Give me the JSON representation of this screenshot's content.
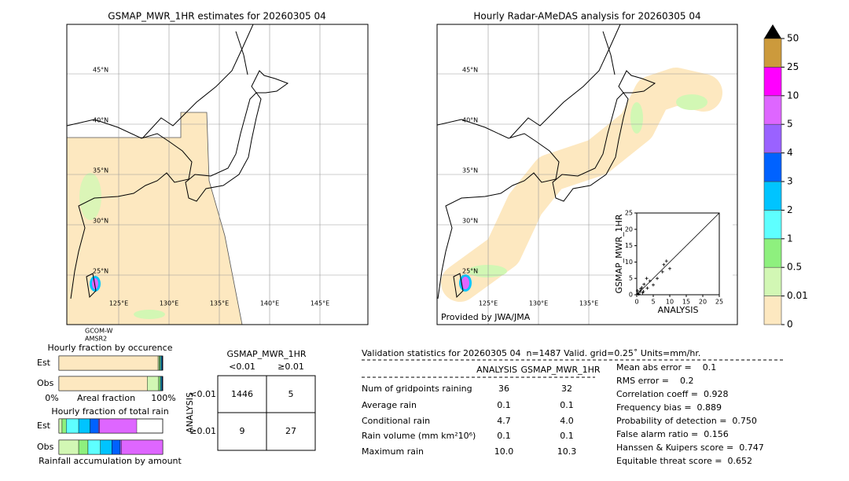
{
  "maps": [
    {
      "title": "GSMAP_MWR_1HR estimates for 20260305 04",
      "lat_labels": [
        "45°N",
        "40°N",
        "35°N",
        "30°N",
        "25°N"
      ],
      "lon_labels": [
        "125°E",
        "130°E",
        "135°E",
        "140°E",
        "145°E"
      ],
      "satellite": [
        "GCOM-W",
        "AMSR2"
      ]
    },
    {
      "title": "Hourly Radar-AMeDAS analysis for 20260305 04",
      "lat_labels": [
        "45°N",
        "40°N",
        "35°N",
        "30°N",
        "25°N"
      ],
      "lon_labels": [
        "125°E",
        "130°E",
        "135°E"
      ],
      "credit": "Provided by JWA/JMA"
    }
  ],
  "colorbar": {
    "ticks": [
      0,
      0.01,
      0.5,
      1,
      2,
      3,
      4,
      5,
      10,
      25,
      50
    ],
    "colors": [
      "#fde8c0",
      "#d2f7b4",
      "#8ef07e",
      "#5effff",
      "#00c4ff",
      "#0062ff",
      "#9a62ff",
      "#de66ff",
      "#ff00ff",
      "#cc9a3c"
    ]
  },
  "chart_data": {
    "type": "scatter",
    "xlabel": "ANALYSIS",
    "ylabel": "GSMAP_MWR_1HR",
    "xlim": [
      0,
      25
    ],
    "ylim": [
      0,
      25
    ],
    "xticks": [
      0,
      5,
      10,
      15,
      20,
      25
    ],
    "yticks": [
      0,
      5,
      10,
      15,
      20,
      25
    ],
    "x": [
      0.3,
      0.6,
      1.0,
      1.2,
      1.5,
      2.0,
      2.2,
      3.0,
      3.2,
      4.0,
      5.0,
      6.2,
      7.8,
      8.2,
      9.0,
      10.0,
      0.2,
      1.8
    ],
    "y": [
      0.4,
      0.2,
      1.0,
      1.8,
      2.2,
      1.0,
      3.2,
      5.0,
      2.0,
      4.2,
      3.0,
      5.0,
      7.0,
      9.2,
      10.3,
      8.0,
      1.2,
      0.6
    ]
  },
  "fraction_charts": [
    {
      "title": "Hourly fraction by occurence",
      "rows": [
        "Est",
        "Obs"
      ],
      "colors": [
        "#fde8c0",
        "#d2f7b4",
        "#8ef07e",
        "#5effff",
        "#00c4ff",
        "#0062ff",
        "#1a1a6e"
      ],
      "values": [
        [
          95.5,
          1,
          1,
          0.8,
          0.7,
          0.5,
          0.5
        ],
        [
          85,
          11,
          1.5,
          0.8,
          0.7,
          0.5,
          0.5
        ]
      ],
      "axis": [
        "0%",
        "Areal fraction",
        "100%"
      ]
    },
    {
      "title": "Hourly fraction of total rain",
      "rows": [
        "Est",
        "Obs"
      ],
      "colors": [
        "#d2f7b4",
        "#8ef07e",
        "#5effff",
        "#00c4ff",
        "#0062ff",
        "#9a62ff",
        "#de66ff"
      ],
      "values": [
        [
          3,
          4,
          12,
          11,
          8,
          1,
          36
        ],
        [
          19,
          9,
          12,
          11,
          8,
          1,
          40
        ]
      ],
      "footer": "Rainfall accumulation by amount"
    }
  ],
  "contingency": {
    "title": "GSMAP_MWR_1HR",
    "columns": [
      "<0.01",
      "≥0.01"
    ],
    "row_title": "ANALYSIS",
    "rows": [
      "<0.01",
      "≥0.01"
    ],
    "cells": [
      [
        "1446",
        "5"
      ],
      [
        "9",
        "27"
      ]
    ]
  },
  "validation": {
    "title": "Validation statistics for 20260305 04  n=1487 Valid. grid=0.25˚ Units=mm/hr.",
    "columns": [
      "ANALYSIS",
      "GSMAP_MWR_1HR"
    ],
    "rows": [
      [
        "Num of gridpoints raining",
        "36",
        "32"
      ],
      [
        "Average rain",
        "0.1",
        "0.1"
      ],
      [
        "Conditional rain",
        "4.7",
        "4.0"
      ],
      [
        "Rain volume (mm km²10⁶)",
        "0.1",
        "0.1"
      ],
      [
        "Maximum rain",
        "10.0",
        "10.3"
      ]
    ],
    "scores": [
      "Mean abs error =    0.1",
      "RMS error =    0.2",
      "Correlation coeff =  0.928",
      "Frequency bias =  0.889",
      "Probability of detection =  0.750",
      "False alarm ratio =  0.156",
      "Hanssen & Kuipers score =  0.747",
      "Equitable threat score =  0.652"
    ]
  }
}
